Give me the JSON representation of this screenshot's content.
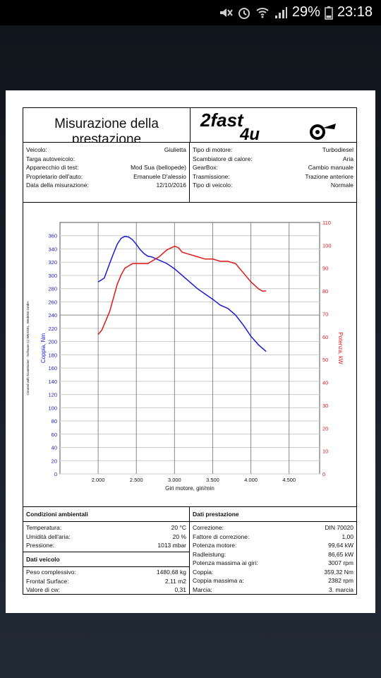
{
  "status_bar": {
    "battery": "29%",
    "time": "23:18"
  },
  "header": {
    "title": "Misurazione della prestazione",
    "logo_text_1": "2fast",
    "logo_text_2": "4u"
  },
  "vehicle_info": {
    "left": [
      {
        "k": "Veicolo:",
        "v": "Giulietta"
      },
      {
        "k": "Targa autoveicolo:",
        "v": ""
      },
      {
        "k": "Apparecchio di test:",
        "v": "Mod Sua (bellopede)"
      },
      {
        "k": "Proprietario dell'auto:",
        "v": "Emanuele D'alessio"
      },
      {
        "k": "Data della misurazione:",
        "v": "12/10/2016"
      }
    ],
    "right": [
      {
        "k": "Tipo di motore:",
        "v": "Turbodiesel"
      },
      {
        "k": "Scambiatore di calore:",
        "v": "Aria"
      },
      {
        "k": "GearBox:",
        "v": "Cambio manuale"
      },
      {
        "k": "Trasmissione:",
        "v": "Trazione anteriore"
      },
      {
        "k": "Tipo di veicolo:",
        "v": "Normale"
      }
    ]
  },
  "chart_data": {
    "type": "line",
    "xlabel": "Giri motore, giri/min",
    "ylabel_left": "Coppia, Nm",
    "ylabel_right": "Potenza, kW",
    "side_text": "Created with ScanMaster - Software (c) WESSEL, Wedeleit GmbH",
    "xlim": [
      1500,
      4900
    ],
    "ylim_left": [
      0,
      380
    ],
    "ylim_right": [
      0,
      110
    ],
    "xticks": [
      2000,
      2500,
      3000,
      3500,
      4000,
      4500
    ],
    "xtick_labels": [
      "2.000",
      "2.500",
      "3.000",
      "3.500",
      "4.000",
      "4.500"
    ],
    "yticks_left": [
      0,
      20,
      40,
      60,
      80,
      100,
      120,
      140,
      160,
      180,
      200,
      220,
      240,
      260,
      280,
      300,
      320,
      340,
      360
    ],
    "yticks_right": [
      0,
      10,
      20,
      30,
      40,
      50,
      60,
      70,
      80,
      90,
      100,
      110
    ],
    "colors": {
      "torque": "#1a1ad0",
      "power": "#e01818"
    },
    "series": [
      {
        "axis": "left",
        "color_key": "torque",
        "x": [
          2000,
          2080,
          2150,
          2200,
          2250,
          2300,
          2350,
          2400,
          2450,
          2500,
          2550,
          2600,
          2650,
          2700,
          2800,
          2900,
          3000,
          3100,
          3200,
          3300,
          3400,
          3500,
          3600,
          3700,
          3800,
          3900,
          4000,
          4100,
          4200
        ],
        "y": [
          290,
          296,
          318,
          333,
          347,
          356,
          359,
          358,
          354,
          347,
          339,
          333,
          329,
          328,
          323,
          318,
          310,
          300,
          290,
          280,
          272,
          264,
          255,
          250,
          240,
          225,
          208,
          195,
          185
        ]
      },
      {
        "axis": "right",
        "color_key": "power",
        "x": [
          2000,
          2050,
          2100,
          2150,
          2200,
          2250,
          2300,
          2350,
          2400,
          2450,
          2500,
          2550,
          2600,
          2650,
          2700,
          2800,
          2900,
          3000,
          3050,
          3100,
          3200,
          3300,
          3400,
          3500,
          3600,
          3700,
          3800,
          3900,
          4000,
          4100,
          4150,
          4200
        ],
        "y": [
          61,
          63,
          67,
          71,
          77,
          83,
          87,
          90,
          91,
          92,
          92,
          92,
          92,
          92,
          93,
          95,
          98,
          99.6,
          99,
          97,
          96,
          95,
          94,
          94,
          93,
          93,
          92,
          88,
          84,
          81,
          80,
          80
        ]
      }
    ]
  },
  "conditions": {
    "title": "Condizioni ambientali",
    "rows": [
      {
        "k": "Temperatura:",
        "v": "20 °C"
      },
      {
        "k": "Umidità dell'aria:",
        "v": "20 %"
      },
      {
        "k": "Pressione:",
        "v": "1013 mbar"
      }
    ]
  },
  "vehicle_data": {
    "title": "Dati veicolo",
    "rows": [
      {
        "k": "Peso complessivo:",
        "v": "1480,68 kg"
      },
      {
        "k": "Frontal Surface:",
        "v": "2,11 m2"
      },
      {
        "k": "Valore di cw:",
        "v": "0,31"
      }
    ]
  },
  "performance": {
    "title": "Dati prestazione",
    "rows": [
      {
        "k": "Correzione:",
        "v": "DIN 70020"
      },
      {
        "k": "Fattore di correzione:",
        "v": "1,00"
      },
      {
        "k": "Potenza motore:",
        "v": "99,64 kW"
      },
      {
        "k": "Radleistung:",
        "v": "86,65 kW"
      },
      {
        "k": "Potenza massima ai giri:",
        "v": "3007 rpm"
      },
      {
        "k": "Coppia:",
        "v": "359,32 Nm"
      },
      {
        "k": "Coppia massima a:",
        "v": "2382 rpm"
      },
      {
        "k": "Marcia:",
        "v": "3. marcia"
      }
    ]
  }
}
